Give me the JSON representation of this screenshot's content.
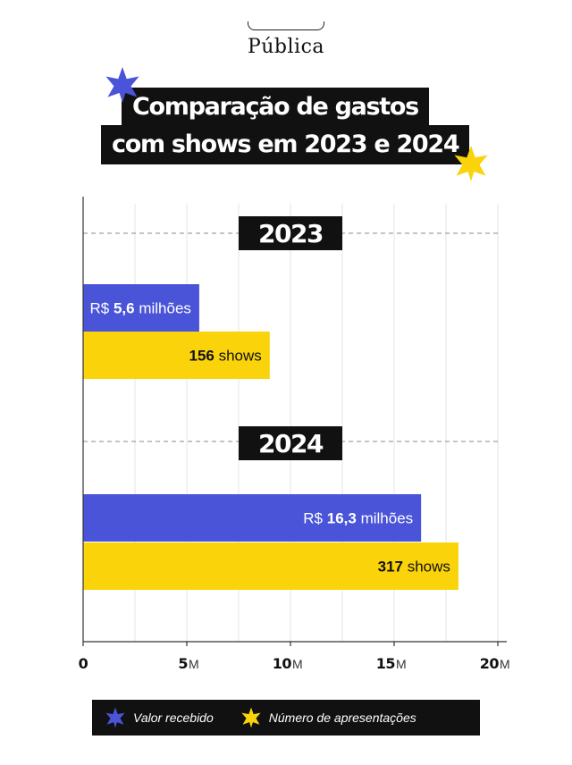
{
  "brand": {
    "logo_text": "Pública"
  },
  "title": {
    "line1": "Comparação de gastos",
    "line2": "com shows em 2023 e 2024"
  },
  "colors": {
    "blue": "#4a54d8",
    "yellow": "#fad30a",
    "black": "#111111",
    "grid": "#e6e6e6"
  },
  "chart_data": {
    "type": "bar",
    "orientation": "horizontal",
    "groups": [
      {
        "label": "2023",
        "bars": [
          {
            "series": "Valor recebido",
            "value": 5.6,
            "prefix": "R$ ",
            "strong": "5,6",
            "suffix": " milhões"
          },
          {
            "series": "Número de apresentações",
            "value": 9.0,
            "prefix": "",
            "strong": "156",
            "suffix": " shows"
          }
        ]
      },
      {
        "label": "2024",
        "bars": [
          {
            "series": "Valor recebido",
            "value": 16.3,
            "prefix": "R$ ",
            "strong": "16,3",
            "suffix": " milhões"
          },
          {
            "series": "Número de apresentações",
            "value": 18.1,
            "prefix": "",
            "strong": "317",
            "suffix": " shows"
          }
        ]
      }
    ],
    "xlim": [
      0,
      20
    ],
    "ticks": [
      {
        "value": 0,
        "label": "0",
        "unit": ""
      },
      {
        "value": 5,
        "label": "5",
        "unit": "M"
      },
      {
        "value": 10,
        "label": "10",
        "unit": "M"
      },
      {
        "value": 15,
        "label": "15",
        "unit": "M"
      },
      {
        "value": 20,
        "label": "20",
        "unit": "M"
      }
    ],
    "grid": true
  },
  "legend": {
    "items": [
      {
        "label": "Valor recebido",
        "icon": "blue-star-icon"
      },
      {
        "label": "Número de apresentações",
        "icon": "yellow-star-icon"
      }
    ]
  }
}
